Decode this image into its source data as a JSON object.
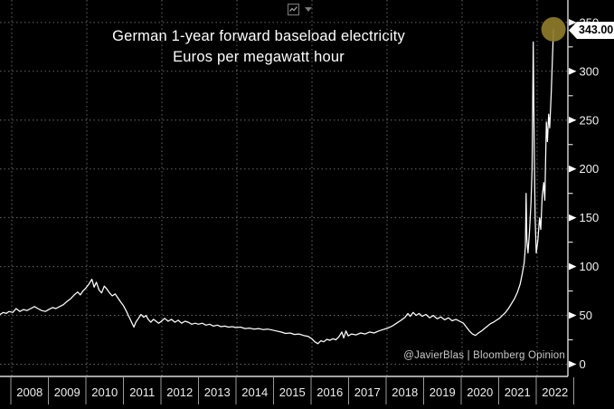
{
  "header": {
    "title_line1": "German 1-year forward baseload electricity",
    "title_line2": "Euros per megawatt hour"
  },
  "watermark": {
    "text": "@JavierBlas  |  Bloomberg Opinion"
  },
  "last_price": {
    "label": "343.00",
    "value": 343.0
  },
  "colors": {
    "background": "#000000",
    "line": "#ffffff",
    "grid": "#676767",
    "axis": "#d9d9d9",
    "tick_label": "#f2f2f2",
    "year_label": "#efefef",
    "separator": "#9a9a9a",
    "watermark": "#c9c9c9",
    "marker": "#8d7b2a",
    "tag_bg": "#ffffff",
    "tag_text": "#000000",
    "icon": "#7d7d7d"
  },
  "chart_data": {
    "type": "line",
    "title": "German 1-year forward baseload electricity",
    "subtitle": "Euros per megawatt hour",
    "ylabel": "Euros per megawatt hour",
    "ylim": [
      0,
      350
    ],
    "y_ticks": [
      0,
      50,
      100,
      150,
      200,
      250,
      300,
      350
    ],
    "y_minor_step": 25,
    "x_years": [
      2008,
      2009,
      2010,
      2011,
      2012,
      2013,
      2014,
      2015,
      2016,
      2017,
      2018,
      2019,
      2020,
      2021,
      2022
    ],
    "x_gridline_years": [
      2008,
      2010,
      2012,
      2014,
      2016,
      2018,
      2020,
      2022
    ],
    "grid": "dotted",
    "legend": "none",
    "last_value": 343.0,
    "series": [
      {
        "name": "German 1-year forward baseload electricity (EUR/MWh)",
        "points": [
          [
            2007.71,
            51
          ],
          [
            2007.8,
            53
          ],
          [
            2007.88,
            52
          ],
          [
            2007.95,
            54
          ],
          [
            2008.05,
            53
          ],
          [
            2008.14,
            57
          ],
          [
            2008.24,
            54
          ],
          [
            2008.34,
            56
          ],
          [
            2008.43,
            55
          ],
          [
            2008.53,
            57
          ],
          [
            2008.63,
            59
          ],
          [
            2008.72,
            57
          ],
          [
            2008.82,
            55
          ],
          [
            2008.92,
            54
          ],
          [
            2009.01,
            56
          ],
          [
            2009.11,
            58
          ],
          [
            2009.2,
            57
          ],
          [
            2009.3,
            59
          ],
          [
            2009.4,
            61
          ],
          [
            2009.49,
            64
          ],
          [
            2009.59,
            67
          ],
          [
            2009.69,
            71
          ],
          [
            2009.78,
            74
          ],
          [
            2009.85,
            71
          ],
          [
            2009.92,
            75
          ],
          [
            2010.0,
            78
          ],
          [
            2010.08,
            82
          ],
          [
            2010.16,
            87
          ],
          [
            2010.22,
            79
          ],
          [
            2010.28,
            84
          ],
          [
            2010.35,
            76
          ],
          [
            2010.42,
            73
          ],
          [
            2010.49,
            80
          ],
          [
            2010.56,
            77
          ],
          [
            2010.63,
            73
          ],
          [
            2010.7,
            70
          ],
          [
            2010.78,
            72
          ],
          [
            2010.85,
            68
          ],
          [
            2010.92,
            64
          ],
          [
            2011.0,
            60
          ],
          [
            2011.07,
            55
          ],
          [
            2011.13,
            50
          ],
          [
            2011.18,
            46
          ],
          [
            2011.23,
            42
          ],
          [
            2011.28,
            38
          ],
          [
            2011.33,
            43
          ],
          [
            2011.4,
            47
          ],
          [
            2011.47,
            51
          ],
          [
            2011.54,
            48
          ],
          [
            2011.6,
            50
          ],
          [
            2011.66,
            46
          ],
          [
            2011.73,
            43
          ],
          [
            2011.8,
            46
          ],
          [
            2011.87,
            44
          ],
          [
            2011.94,
            42
          ],
          [
            2012.01,
            44
          ],
          [
            2012.1,
            47
          ],
          [
            2012.19,
            44
          ],
          [
            2012.28,
            46
          ],
          [
            2012.37,
            43
          ],
          [
            2012.46,
            45
          ],
          [
            2012.55,
            42
          ],
          [
            2012.64,
            44
          ],
          [
            2012.73,
            43
          ],
          [
            2012.82,
            41
          ],
          [
            2012.91,
            42
          ],
          [
            2013.0,
            41
          ],
          [
            2013.1,
            42
          ],
          [
            2013.2,
            40
          ],
          [
            2013.3,
            41
          ],
          [
            2013.4,
            39
          ],
          [
            2013.5,
            40
          ],
          [
            2013.6,
            38.5
          ],
          [
            2013.7,
            39
          ],
          [
            2013.8,
            38
          ],
          [
            2013.9,
            38.5
          ],
          [
            2014.0,
            37.5
          ],
          [
            2014.12,
            38
          ],
          [
            2014.24,
            36.5
          ],
          [
            2014.36,
            37
          ],
          [
            2014.48,
            36
          ],
          [
            2014.6,
            36.5
          ],
          [
            2014.72,
            35.5
          ],
          [
            2014.84,
            36
          ],
          [
            2014.96,
            35
          ],
          [
            2015.08,
            34
          ],
          [
            2015.2,
            33
          ],
          [
            2015.32,
            31.5
          ],
          [
            2015.44,
            32
          ],
          [
            2015.56,
            30.5
          ],
          [
            2015.68,
            31
          ],
          [
            2015.8,
            29.5
          ],
          [
            2015.92,
            28.5
          ],
          [
            2016.02,
            26
          ],
          [
            2016.1,
            23
          ],
          [
            2016.18,
            21
          ],
          [
            2016.26,
            24
          ],
          [
            2016.34,
            23
          ],
          [
            2016.42,
            25.5
          ],
          [
            2016.5,
            24.5
          ],
          [
            2016.58,
            26
          ],
          [
            2016.66,
            25
          ],
          [
            2016.74,
            28
          ],
          [
            2016.82,
            33
          ],
          [
            2016.87,
            27
          ],
          [
            2016.93,
            34
          ],
          [
            2016.99,
            29
          ],
          [
            2017.08,
            31
          ],
          [
            2017.2,
            30
          ],
          [
            2017.32,
            32
          ],
          [
            2017.44,
            31
          ],
          [
            2017.56,
            33
          ],
          [
            2017.68,
            32
          ],
          [
            2017.8,
            34
          ],
          [
            2017.92,
            35.5
          ],
          [
            2018.04,
            37
          ],
          [
            2018.16,
            39
          ],
          [
            2018.28,
            42
          ],
          [
            2018.4,
            45
          ],
          [
            2018.5,
            48
          ],
          [
            2018.58,
            52
          ],
          [
            2018.64,
            49
          ],
          [
            2018.72,
            53
          ],
          [
            2018.8,
            50
          ],
          [
            2018.88,
            52
          ],
          [
            2018.96,
            49
          ],
          [
            2019.06,
            51
          ],
          [
            2019.16,
            47.5
          ],
          [
            2019.26,
            50
          ],
          [
            2019.36,
            46.5
          ],
          [
            2019.46,
            48.5
          ],
          [
            2019.56,
            45.5
          ],
          [
            2019.66,
            47.5
          ],
          [
            2019.76,
            44.5
          ],
          [
            2019.86,
            46
          ],
          [
            2019.96,
            44
          ],
          [
            2020.06,
            42
          ],
          [
            2020.14,
            38
          ],
          [
            2020.22,
            34
          ],
          [
            2020.3,
            31
          ],
          [
            2020.38,
            29.5
          ],
          [
            2020.46,
            32
          ],
          [
            2020.54,
            34
          ],
          [
            2020.62,
            36.5
          ],
          [
            2020.7,
            39
          ],
          [
            2020.78,
            41.5
          ],
          [
            2020.86,
            43
          ],
          [
            2020.94,
            45
          ],
          [
            2021.02,
            47
          ],
          [
            2021.1,
            50
          ],
          [
            2021.18,
            53
          ],
          [
            2021.26,
            57
          ],
          [
            2021.34,
            62
          ],
          [
            2021.42,
            67
          ],
          [
            2021.5,
            74
          ],
          [
            2021.57,
            82
          ],
          [
            2021.63,
            93
          ],
          [
            2021.68,
            104
          ],
          [
            2021.71,
            120
          ],
          [
            2021.73,
            175
          ],
          [
            2021.75,
            128
          ],
          [
            2021.78,
            114
          ],
          [
            2021.82,
            135
          ],
          [
            2021.86,
            165
          ],
          [
            2021.89,
            200
          ],
          [
            2021.92,
            330
          ],
          [
            2021.95,
            210
          ],
          [
            2021.97,
            150
          ],
          [
            2022.0,
            114
          ],
          [
            2022.04,
            126
          ],
          [
            2022.09,
            150
          ],
          [
            2022.12,
            138
          ],
          [
            2022.16,
            172
          ],
          [
            2022.2,
            186
          ],
          [
            2022.23,
            168
          ],
          [
            2022.27,
            248
          ],
          [
            2022.3,
            228
          ],
          [
            2022.33,
            256
          ],
          [
            2022.36,
            242
          ],
          [
            2022.4,
            278
          ],
          [
            2022.43,
            310
          ],
          [
            2022.46,
            343
          ]
        ]
      }
    ]
  }
}
